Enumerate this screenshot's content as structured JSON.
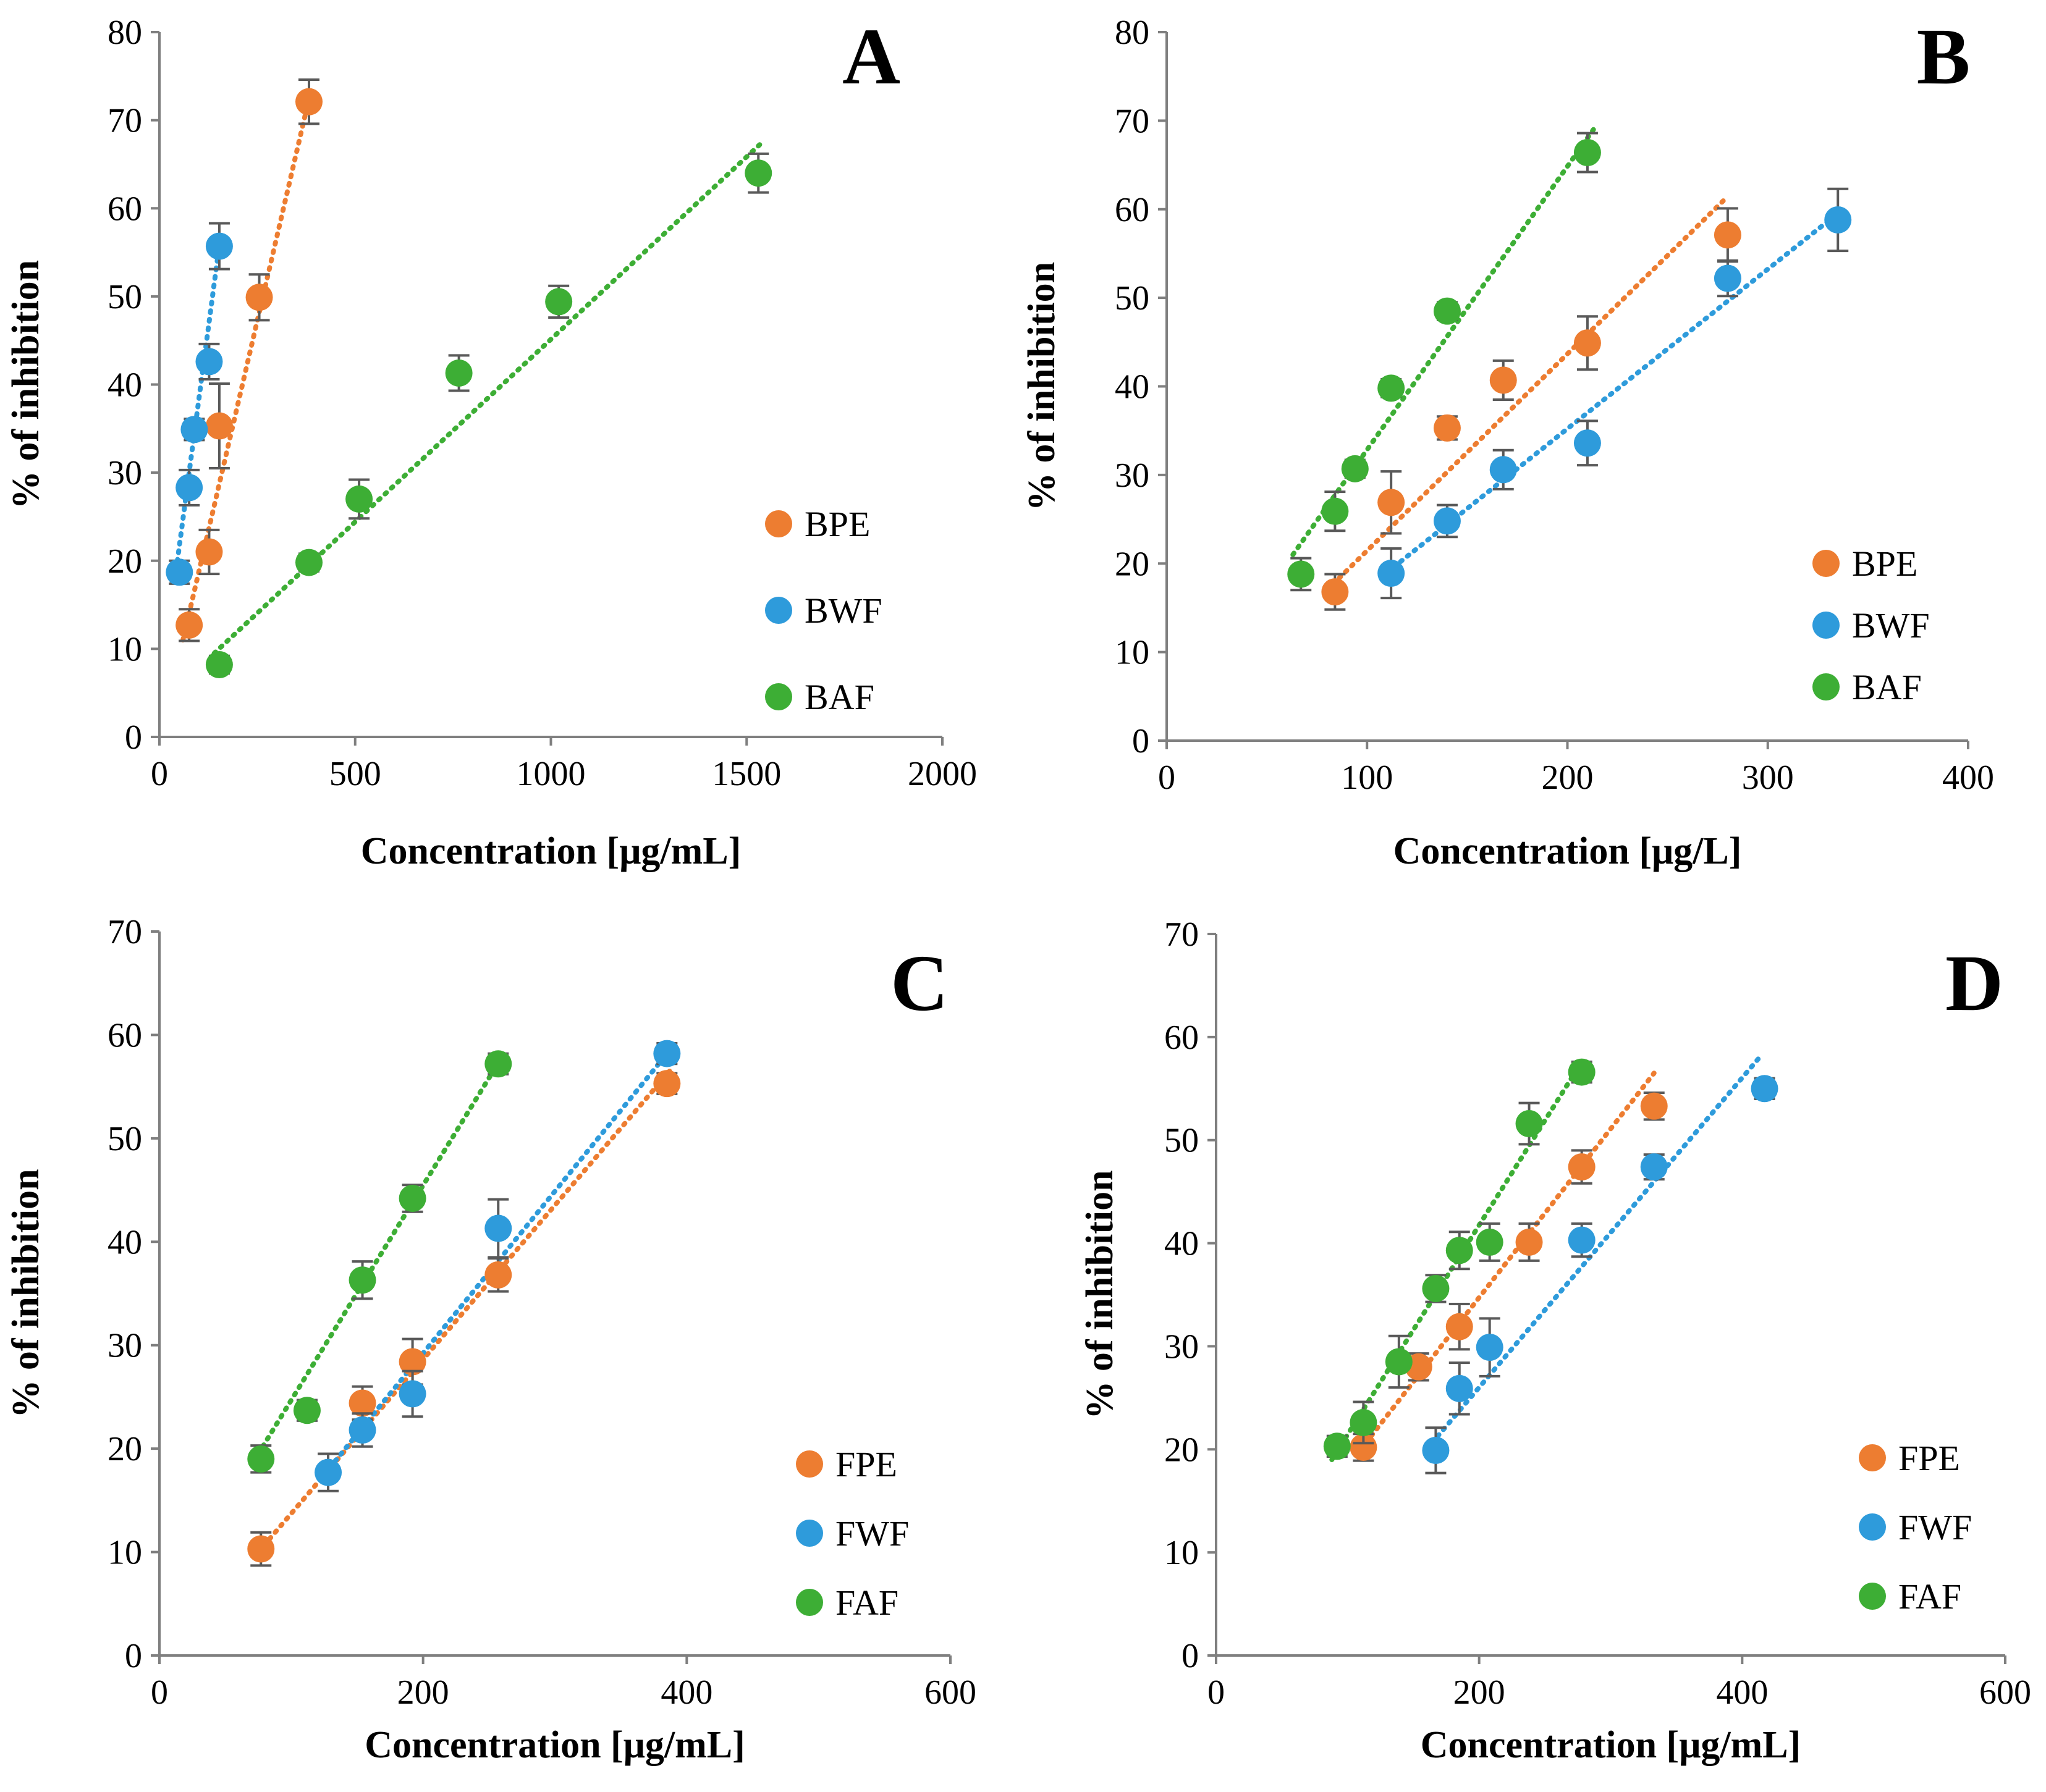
{
  "chart_data": [
    {
      "type": "scatter",
      "panel_label": "A",
      "xlabel": "Concentration [μg/mL]",
      "ylabel": "% of inhibition",
      "xlim": [
        0,
        2000
      ],
      "ylim": [
        0,
        80
      ],
      "xticks": [
        0,
        500,
        1000,
        1500,
        2000
      ],
      "yticks": [
        0,
        10,
        20,
        30,
        40,
        50,
        60,
        70,
        80
      ],
      "legend_position": "right",
      "series": [
        {
          "name": "BPE",
          "color": "#ED7D31",
          "points": [
            [
              76,
              12.7,
              1.8
            ],
            [
              127,
              21.0,
              2.5
            ],
            [
              153,
              35.3,
              4.8
            ],
            [
              255,
              49.9,
              2.6
            ],
            [
              382,
              72.1,
              2.5
            ]
          ],
          "trend": [
            [
              60,
              11.0
            ],
            [
              385,
              73.0
            ]
          ]
        },
        {
          "name": "BWF",
          "color": "#2E9BDB",
          "points": [
            [
              51,
              18.7,
              1.3
            ],
            [
              76,
              28.3,
              2.0
            ],
            [
              89,
              34.9,
              1.2
            ],
            [
              127,
              42.6,
              2.0
            ],
            [
              153,
              55.7,
              2.6
            ]
          ],
          "trend": [
            [
              40,
              18.0
            ],
            [
              155,
              56.5
            ]
          ]
        },
        {
          "name": "BAF",
          "color": "#3DAE35",
          "points": [
            [
              153,
              8.2,
              1.0
            ],
            [
              382,
              19.8,
              1.0
            ],
            [
              510,
              27.0,
              2.2
            ],
            [
              765,
              41.3,
              2.0
            ],
            [
              1020,
              49.4,
              1.8
            ],
            [
              1530,
              64.0,
              2.2
            ]
          ],
          "trend": [
            [
              140,
              9.5
            ],
            [
              1540,
              67.5
            ]
          ]
        }
      ]
    },
    {
      "type": "scatter",
      "panel_label": "B",
      "xlabel": "Concentration [μg/L]",
      "ylabel": "% of inhibition",
      "xlim": [
        0,
        400
      ],
      "ylim": [
        0,
        80
      ],
      "xticks": [
        0,
        100,
        200,
        300,
        400
      ],
      "yticks": [
        0,
        10,
        20,
        30,
        40,
        50,
        60,
        70,
        80
      ],
      "legend_position": "bottom-right",
      "series": [
        {
          "name": "BPE",
          "color": "#ED7D31",
          "points": [
            [
              84,
              16.8,
              2.0
            ],
            [
              112,
              26.9,
              3.5
            ],
            [
              140,
              35.3,
              1.3
            ],
            [
              168,
              40.7,
              2.2
            ],
            [
              210,
              44.9,
              3.0
            ],
            [
              280,
              57.1,
              3.0
            ]
          ],
          "trend": [
            [
              80,
              17.0
            ],
            [
              278,
              61.0
            ]
          ]
        },
        {
          "name": "BWF",
          "color": "#2E9BDB",
          "points": [
            [
              112,
              18.9,
              2.8
            ],
            [
              140,
              24.8,
              1.8
            ],
            [
              168,
              30.6,
              2.2
            ],
            [
              210,
              33.6,
              2.5
            ],
            [
              280,
              52.2,
              2.0
            ],
            [
              335,
              58.8,
              3.5
            ]
          ],
          "trend": [
            [
              110,
              19.0
            ],
            [
              332,
              59.0
            ]
          ]
        },
        {
          "name": "BAF",
          "color": "#3DAE35",
          "points": [
            [
              67,
              18.8,
              1.8
            ],
            [
              84,
              25.9,
              2.2
            ],
            [
              94,
              30.7,
              1.0
            ],
            [
              112,
              39.8,
              1.0
            ],
            [
              140,
              48.5,
              1.0
            ],
            [
              210,
              66.4,
              2.2
            ]
          ],
          "trend": [
            [
              63,
              21.0
            ],
            [
              213,
              69.0
            ]
          ]
        }
      ]
    },
    {
      "type": "scatter",
      "panel_label": "C",
      "xlabel": "Concentration [μg/mL]",
      "ylabel": "% of inhibition",
      "xlim": [
        0,
        600
      ],
      "ylim": [
        0,
        70
      ],
      "xticks": [
        0,
        200,
        400,
        600
      ],
      "yticks": [
        0,
        10,
        20,
        30,
        40,
        50,
        60,
        70
      ],
      "legend_position": "bottom-right",
      "series": [
        {
          "name": "FPE",
          "color": "#ED7D31",
          "points": [
            [
              77,
              10.3,
              1.6
            ],
            [
              154,
              24.4,
              1.6
            ],
            [
              192,
              28.4,
              2.2
            ],
            [
              257,
              36.8,
              1.6
            ],
            [
              385,
              55.3,
              1.0
            ]
          ],
          "trend": [
            [
              75,
              10.0
            ],
            [
              387,
              56.5
            ]
          ]
        },
        {
          "name": "FWF",
          "color": "#2E9BDB",
          "points": [
            [
              128,
              17.7,
              1.8
            ],
            [
              154,
              21.8,
              1.6
            ],
            [
              192,
              25.3,
              2.2
            ],
            [
              257,
              41.3,
              2.8
            ],
            [
              385,
              58.2,
              1.0
            ]
          ],
          "trend": [
            [
              125,
              17.5
            ],
            [
              387,
              58.5
            ]
          ]
        },
        {
          "name": "FAF",
          "color": "#3DAE35",
          "points": [
            [
              77,
              19.0,
              1.3
            ],
            [
              112,
              23.7,
              1.0
            ],
            [
              154,
              36.3,
              1.8
            ],
            [
              192,
              44.2,
              1.3
            ],
            [
              257,
              57.2,
              1.0
            ]
          ],
          "trend": [
            [
              75,
              19.5
            ],
            [
              258,
              57.5
            ]
          ]
        }
      ]
    },
    {
      "type": "scatter",
      "panel_label": "D",
      "xlabel": "Concentration [μg/mL]",
      "ylabel": "% of inhibition",
      "xlim": [
        0,
        600
      ],
      "ylim": [
        0,
        70
      ],
      "xticks": [
        0,
        200,
        400,
        600
      ],
      "yticks": [
        0,
        10,
        20,
        30,
        40,
        50,
        60,
        70
      ],
      "legend_position": "bottom-right",
      "series": [
        {
          "name": "FPE",
          "color": "#ED7D31",
          "points": [
            [
              112,
              20.2,
              1.3
            ],
            [
              154,
              28.0,
              1.3
            ],
            [
              185,
              31.9,
              2.2
            ],
            [
              238,
              40.1,
              1.8
            ],
            [
              278,
              47.4,
              1.6
            ],
            [
              333,
              53.3,
              1.3
            ]
          ],
          "trend": [
            [
              110,
              20.0
            ],
            [
              333,
              56.5
            ]
          ]
        },
        {
          "name": "FWF",
          "color": "#2E9BDB",
          "points": [
            [
              167,
              19.9,
              2.2
            ],
            [
              185,
              25.9,
              2.5
            ],
            [
              208,
              29.9,
              2.8
            ],
            [
              278,
              40.3,
              1.6
            ],
            [
              333,
              47.4,
              1.2
            ],
            [
              417,
              55.0,
              1.0
            ]
          ],
          "trend": [
            [
              160,
              20.0
            ],
            [
              413,
              58.0
            ]
          ]
        },
        {
          "name": "FAF",
          "color": "#3DAE35",
          "points": [
            [
              92,
              20.3,
              1.0
            ],
            [
              112,
              22.6,
              2.0
            ],
            [
              139,
              28.5,
              2.5
            ],
            [
              167,
              35.6,
              1.3
            ],
            [
              185,
              39.3,
              1.8
            ],
            [
              208,
              40.1,
              1.8
            ],
            [
              238,
              51.6,
              2.0
            ],
            [
              278,
              56.6,
              1.0
            ]
          ],
          "trend": [
            [
              88,
              19.0
            ],
            [
              280,
              58.0
            ]
          ]
        }
      ]
    }
  ]
}
